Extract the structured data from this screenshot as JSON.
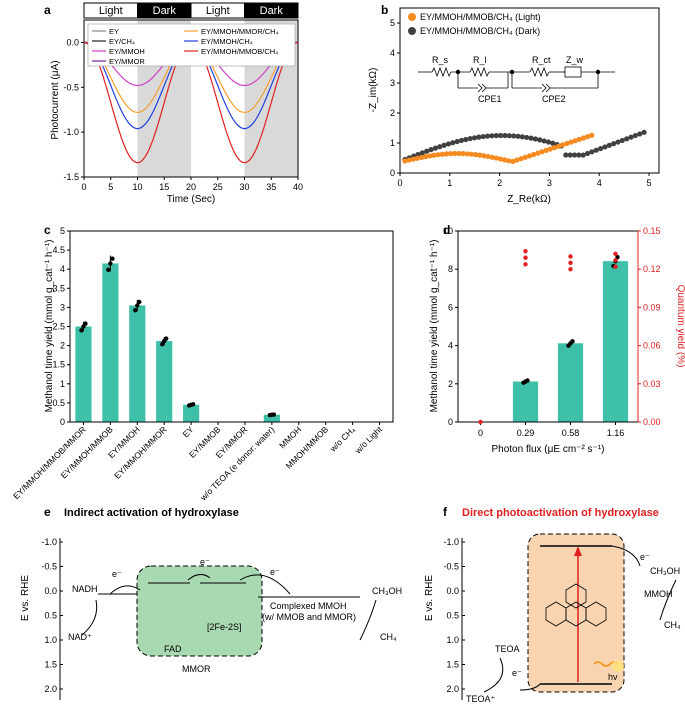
{
  "panels": {
    "a": "a",
    "b": "b",
    "c": "c",
    "d": "d",
    "e": "e",
    "f": "f"
  },
  "chart_data": [
    {
      "id": "a",
      "type": "line",
      "xlabel": "Time (Sec)",
      "ylabel": "Photocurrent (μA)",
      "xlim": [
        0,
        40
      ],
      "ylim": [
        -1.5,
        0.25
      ],
      "xticks": [
        "0",
        "5",
        "10",
        "15",
        "20",
        "25",
        "30",
        "35",
        "40"
      ],
      "yticks": [
        "0.0",
        "-0.5",
        "-1.0",
        "-1.5"
      ],
      "bands": [
        {
          "label": "Light",
          "from": 0,
          "to": 10,
          "shaded": false
        },
        {
          "label": "Dark",
          "from": 10,
          "to": 20,
          "shaded": true
        },
        {
          "label": "Light",
          "from": 20,
          "to": 30,
          "shaded": false
        },
        {
          "label": "Dark",
          "from": 30,
          "to": 40,
          "shaded": true
        }
      ],
      "series": [
        {
          "name": "EY",
          "color": "#888888",
          "peak": -0.03
        },
        {
          "name": "EY/CH₄",
          "color": "#222222",
          "peak": -0.08
        },
        {
          "name": "EY/MMOH",
          "color": "#d040c8",
          "peak": -0.48
        },
        {
          "name": "EY/MMOR",
          "color": "#7a1fa0",
          "peak": -0.25
        },
        {
          "name": "EY/MMOH/MMOR/CH₄",
          "color": "#f5a030",
          "peak": -0.78
        },
        {
          "name": "EY/MMOH/CH₄",
          "color": "#2040e0",
          "peak": -0.96
        },
        {
          "name": "EY/MMOH/MMOB/CH₄",
          "color": "#e02020",
          "peak": -1.34
        }
      ]
    },
    {
      "id": "b",
      "type": "scatter",
      "xlabel": "Z_Re(kΩ)",
      "ylabel": "-Z_im(kΩ)",
      "xlim": [
        0,
        5.2
      ],
      "ylim": [
        0,
        5.5
      ],
      "xticks": [
        "0",
        "1",
        "2",
        "3",
        "4",
        "5"
      ],
      "yticks": [
        "0",
        "1",
        "2",
        "3",
        "4",
        "5"
      ],
      "legend": [
        "EY/MMOH/MMOB/CH₄ (Light)",
        "EY/MMOH/MMOB/CH₄ (Dark)"
      ],
      "circuit_labels": {
        "rs": "R_s",
        "r1": "R_l",
        "cpe1": "CPE1",
        "rct": "R_ct",
        "zw": "Z_w",
        "cpe2": "CPE2"
      },
      "series": [
        {
          "name": "Light",
          "color": "#f58a1f"
        },
        {
          "name": "Dark",
          "color": "#404040"
        }
      ]
    },
    {
      "id": "c",
      "type": "bar",
      "ylabel": "Methanol time yield (mmol g_cat⁻¹ h⁻¹)",
      "ylim": [
        0,
        5
      ],
      "yticks": [
        "0",
        "0.5",
        "1",
        "1.5",
        "2",
        "2.5",
        "3",
        "3.5",
        "4",
        "4.5",
        "5"
      ],
      "categories": [
        "EY/MMOH/MMOB/MMOR",
        "EY/MMOH/MMOB",
        "EY/MMOH",
        "EY/MMOH/MMOR",
        "EY",
        "EY/MMOB",
        "EY/MMOR",
        "w/o TEOA (e donor: water)",
        "MMOH",
        "MMOH/MMOB",
        "w/o CH₄",
        "w/o Light"
      ],
      "values": [
        2.5,
        4.15,
        3.05,
        2.12,
        0.45,
        0,
        0,
        0.19,
        0,
        0,
        0,
        0
      ],
      "color": "#3dbfa8"
    },
    {
      "id": "d",
      "type": "bar",
      "xlabel": "Photon flux (μE cm⁻² s⁻¹)",
      "ylabel": "Methanol time yield (mmol g_cat⁻¹ h⁻¹)",
      "y2label": "Quantum yield (%)",
      "ylim": [
        0,
        10
      ],
      "y2lim": [
        0,
        0.15
      ],
      "yticks": [
        "0",
        "2",
        "4",
        "6",
        "8",
        "10"
      ],
      "y2ticks": [
        "0.00",
        "0.03",
        "0.06",
        "0.09",
        "0.12",
        "0.15"
      ],
      "categories": [
        "0",
        "0.29",
        "0.58",
        "1.16"
      ],
      "values": [
        0,
        2.12,
        4.12,
        8.42
      ],
      "quantum_yield": [
        0,
        0.129,
        0.125,
        0.127
      ],
      "color": "#3dbfa8",
      "qy_color": "#e02020"
    }
  ],
  "diagram_e": {
    "title": "Indirect activation of hydroxylase",
    "ylabel": "E vs. RHE",
    "yticks": [
      "-1.0",
      "-0.5",
      "0.0",
      "0.5",
      "1.0",
      "1.5",
      "2.0"
    ],
    "nadh": "NADH",
    "nad": "NAD⁺",
    "electron": "e⁻",
    "fad": "FAD",
    "fes": "[2Fe-2S]",
    "mmor": "MMOR",
    "complexed": "Complexed MMOH",
    "complexed2": "(w/ MMOB and MMOR)",
    "ch3oh": "CH₃OH",
    "ch4": "CH₄"
  },
  "diagram_f": {
    "title": "Direct photoactivation of hydroxylase",
    "ylabel": "E vs. RHE",
    "yticks": [
      "-1.0",
      "-0.5",
      "0.0",
      "0.5",
      "1.0",
      "1.5",
      "2.0"
    ],
    "teoa": "TEOA",
    "teoa_plus": "TEOA⁺",
    "electron": "e⁻",
    "mmoh": "MMOH",
    "ch3oh": "CH₃OH",
    "ch4": "CH₄",
    "hv": "hv"
  }
}
